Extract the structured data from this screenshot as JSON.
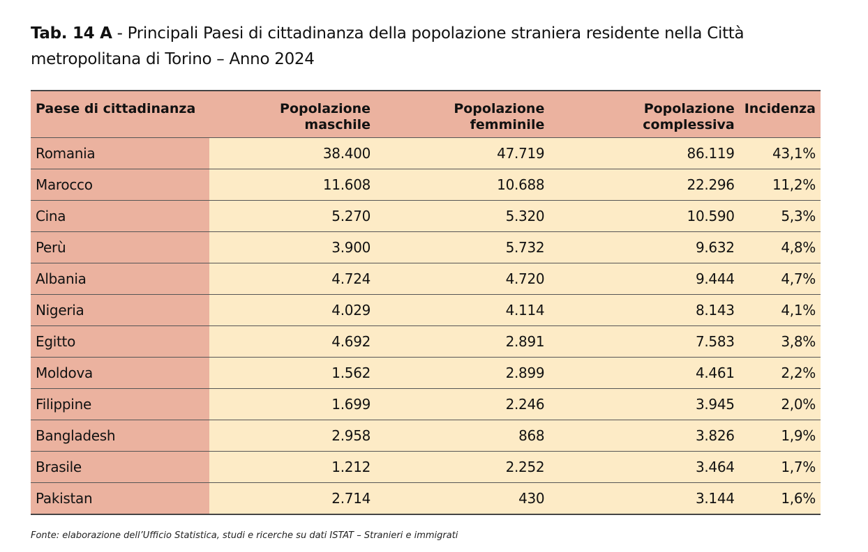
{
  "title": {
    "prefix": "Tab. 14 A",
    "text": " - Principali Paesi di cittadinanza della popolazione straniera residente nella Città metropolitana di Torino – Anno 2024"
  },
  "table": {
    "headers": [
      "Paese di cittadinanza",
      "Popolazione maschile",
      "Popolazione femminile",
      "Popolazione complessiva",
      "Incidenza"
    ],
    "rows": [
      [
        "Romania",
        "38.400",
        "47.719",
        "86.119",
        "43,1%"
      ],
      [
        "Marocco",
        "11.608",
        "10.688",
        "22.296",
        "11,2%"
      ],
      [
        "Cina",
        "5.270",
        "5.320",
        "10.590",
        "5,3%"
      ],
      [
        "Perù",
        "3.900",
        "5.732",
        "9.632",
        "4,8%"
      ],
      [
        "Albania",
        "4.724",
        "4.720",
        "9.444",
        "4,7%"
      ],
      [
        "Nigeria",
        "4.029",
        "4.114",
        "8.143",
        "4,1%"
      ],
      [
        "Egitto",
        "4.692",
        "2.891",
        "7.583",
        "3,8%"
      ],
      [
        "Moldova",
        "1.562",
        "2.899",
        "4.461",
        "2,2%"
      ],
      [
        "Filippine",
        "1.699",
        "2.246",
        "3.945",
        "2,0%"
      ],
      [
        "Bangladesh",
        "2.958",
        "868",
        "3.826",
        "1,9%"
      ],
      [
        "Brasile",
        "1.212",
        "2.252",
        "3.464",
        "1,7%"
      ],
      [
        "Pakistan",
        "2.714",
        "430",
        "3.144",
        "1,6%"
      ]
    ]
  },
  "source": "Fonte: elaborazione dell’Ufficio Statistica, studi e ricerche su dati ISTAT – Stranieri e immigrati",
  "colors": {
    "header": "#ebb29f",
    "body": "#fdebc6"
  }
}
